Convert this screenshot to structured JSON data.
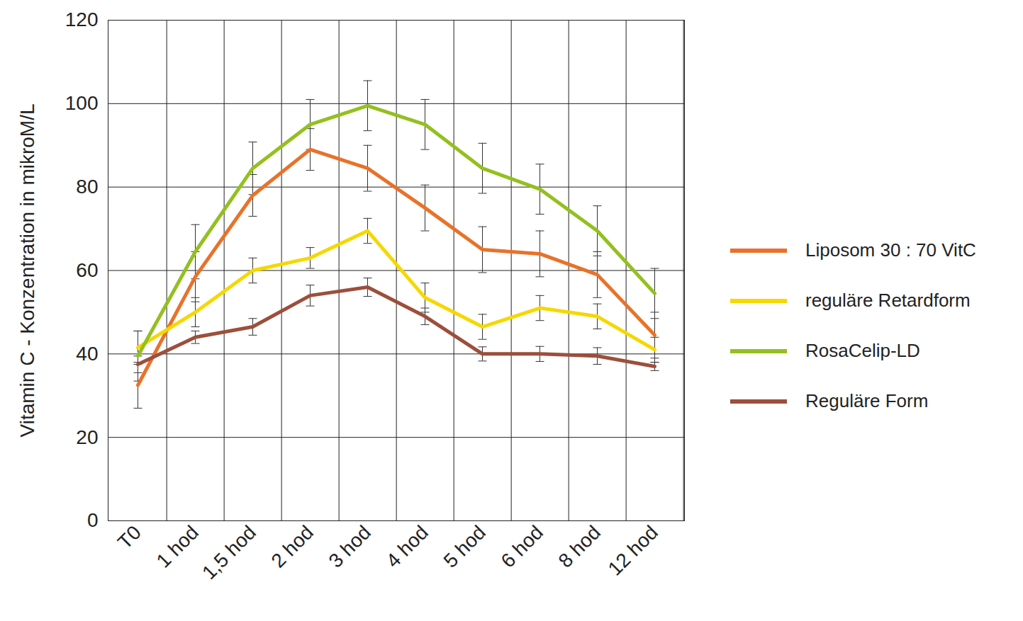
{
  "chart_data": {
    "type": "line",
    "y_label": "Vitamin C - Konzentration in mikroM/L",
    "categories": [
      "T0",
      "1 hod",
      "1,5 hod",
      "2 hod",
      "3 hod",
      "4 hod",
      "5 hod",
      "6 hod",
      "8 hod",
      "12 hod"
    ],
    "series": [
      {
        "name": "Liposom 30 : 70 VitC",
        "color": "#e8722a",
        "values": [
          32.5,
          58.5,
          78,
          89,
          84.5,
          75,
          65,
          64,
          59,
          44.5
        ],
        "error": [
          5.5,
          6,
          5,
          5,
          5.5,
          5.5,
          5.5,
          5.5,
          5.5,
          5.5
        ]
      },
      {
        "name": "reguläre Retardform",
        "color": "#f5d800",
        "values": [
          41.5,
          50,
          60,
          63,
          69.5,
          53.5,
          46.5,
          51,
          49,
          41
        ],
        "error": [
          4,
          3.5,
          3,
          2.5,
          3,
          3.5,
          3,
          3,
          3,
          3
        ]
      },
      {
        "name": "RosaCelip-LD",
        "color": "#93c01f",
        "values": [
          39.5,
          64.5,
          84.5,
          95,
          99.5,
          95,
          84.5,
          79.5,
          69.5,
          54.5
        ],
        "error": [
          6,
          6.5,
          6.3,
          6,
          6,
          6,
          6,
          6,
          6,
          6
        ]
      },
      {
        "name": "Reguläre Form",
        "color": "#9c4f3c",
        "values": [
          37.5,
          44,
          46.5,
          54,
          56,
          49,
          40,
          40,
          39.5,
          37
        ],
        "error": [
          2,
          1.5,
          2,
          2.5,
          2.2,
          2,
          1.7,
          1.8,
          2,
          1
        ]
      }
    ],
    "ylim": [
      0,
      120
    ],
    "yticks": [
      0,
      20,
      40,
      60,
      80,
      100,
      120
    ],
    "grid": true,
    "legend": "right"
  }
}
